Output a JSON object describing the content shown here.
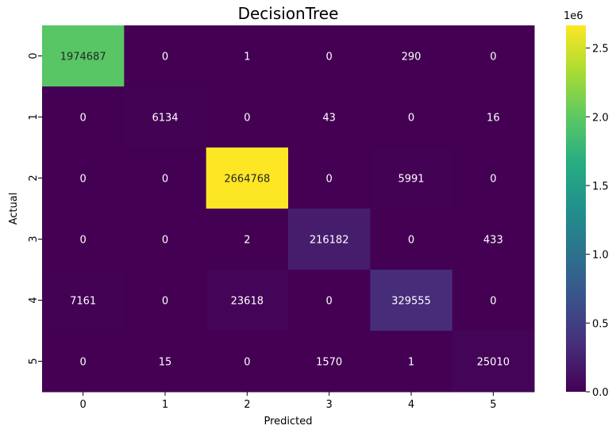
{
  "chart_data": {
    "type": "heatmap",
    "title": "DecisionTree",
    "xlabel": "Predicted",
    "ylabel": "Actual",
    "x_categories": [
      "0",
      "1",
      "2",
      "3",
      "4",
      "5"
    ],
    "y_categories": [
      "0",
      "1",
      "2",
      "3",
      "4",
      "5"
    ],
    "matrix": [
      [
        1974687,
        0,
        1,
        0,
        290,
        0
      ],
      [
        0,
        6134,
        0,
        43,
        0,
        16
      ],
      [
        0,
        0,
        2664768,
        0,
        5991,
        0
      ],
      [
        0,
        0,
        2,
        216182,
        0,
        433
      ],
      [
        7161,
        0,
        23618,
        0,
        329555,
        0
      ],
      [
        0,
        15,
        0,
        1570,
        1,
        25010
      ]
    ],
    "colormap": "viridis",
    "vmin": 0,
    "vmax": 2664768,
    "colorbar": {
      "ticks": [
        0.0,
        0.5,
        1.0,
        1.5,
        2.0,
        2.5
      ],
      "tick_labels": [
        "0.0",
        "0.5",
        "1.0",
        "1.5",
        "2.0",
        "2.5"
      ],
      "scale_label": "1e6"
    },
    "annotation_colors": {
      "dark": "#262626",
      "light": "#ffffff"
    }
  }
}
